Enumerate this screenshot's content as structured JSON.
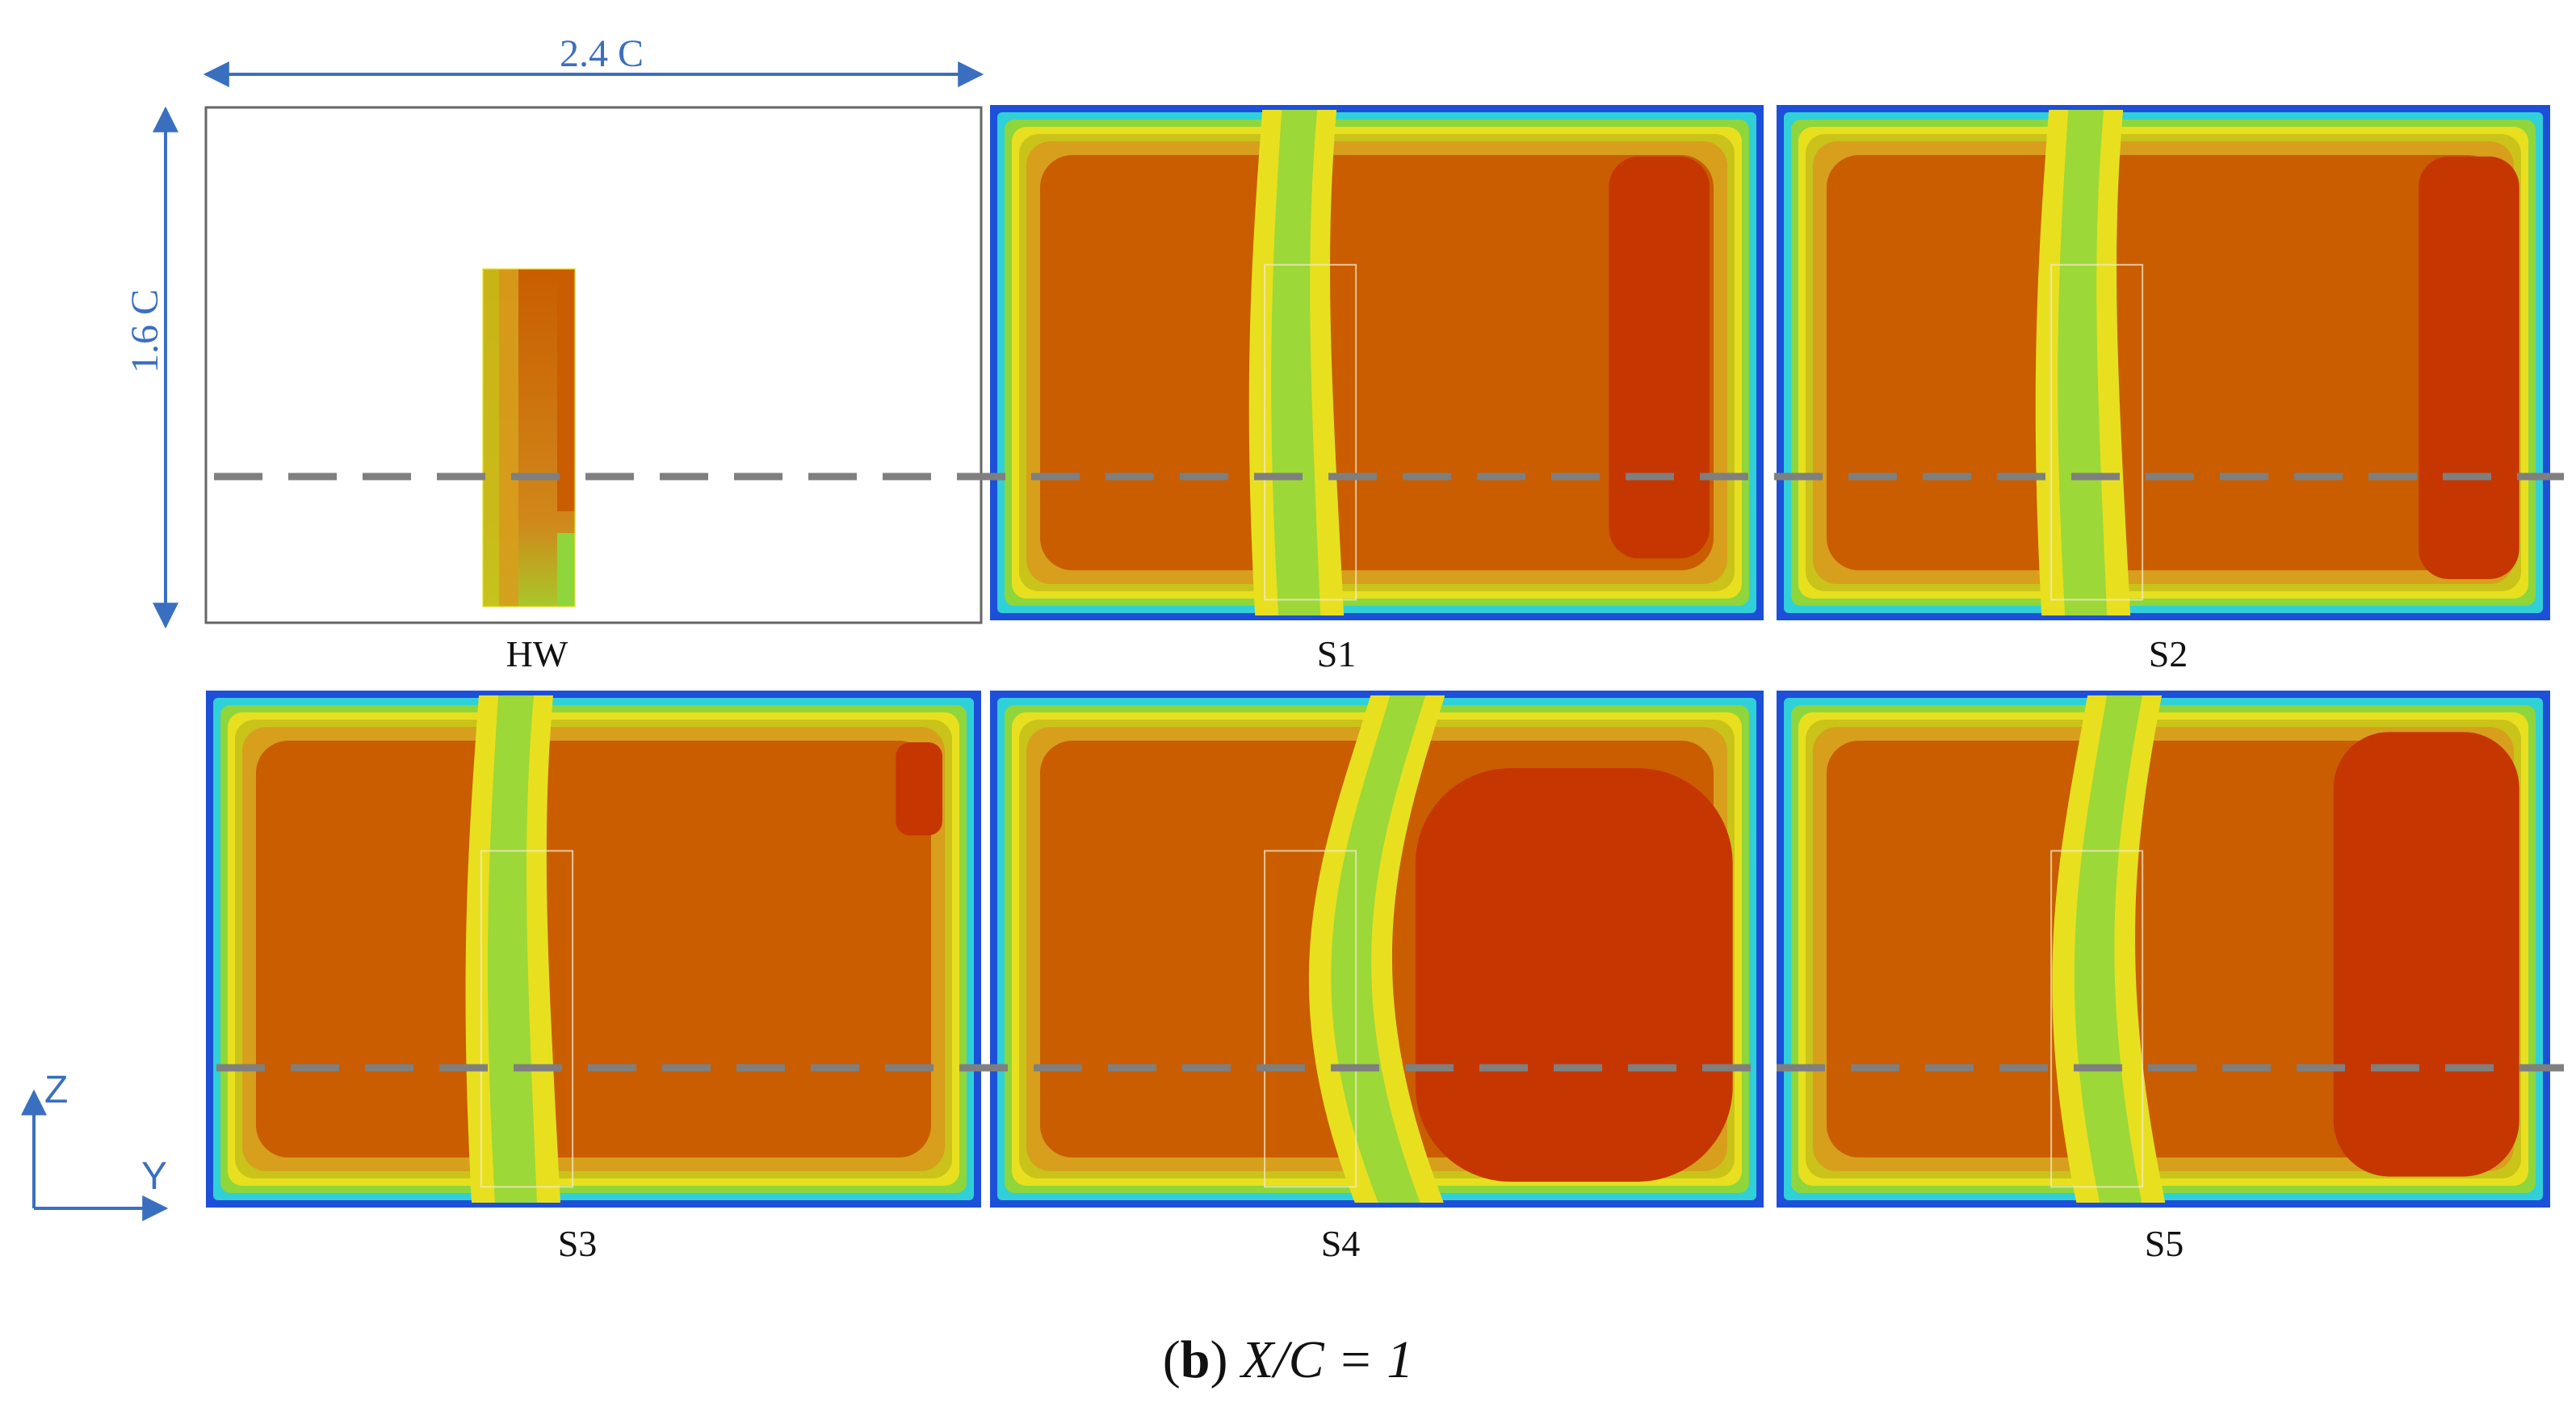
{
  "dimensions": {
    "width_label": "2.4 C",
    "height_label": "1.6 C"
  },
  "panels": [
    {
      "id": "hw",
      "label": "HW"
    },
    {
      "id": "s1",
      "label": "S1"
    },
    {
      "id": "s2",
      "label": "S2"
    },
    {
      "id": "s3",
      "label": "S3"
    },
    {
      "id": "s4",
      "label": "S4"
    },
    {
      "id": "s5",
      "label": "S5"
    }
  ],
  "axes": {
    "vertical": "Z",
    "horizontal": "Y"
  },
  "caption": {
    "letter": "b",
    "text": " X/C = 1"
  },
  "colors": {
    "dimension": "#3a6fc0",
    "dashed_line": "#7f7f7f",
    "contour_outer": "#1d4fd8",
    "contour_cyan": "#2fd0d8",
    "contour_green": "#8ed63c",
    "contour_yellow": "#e8e01f",
    "contour_olive": "#c9c31a",
    "contour_amber": "#d79f1c",
    "contour_orange": "#c95d00",
    "contour_red": "#c63600"
  }
}
